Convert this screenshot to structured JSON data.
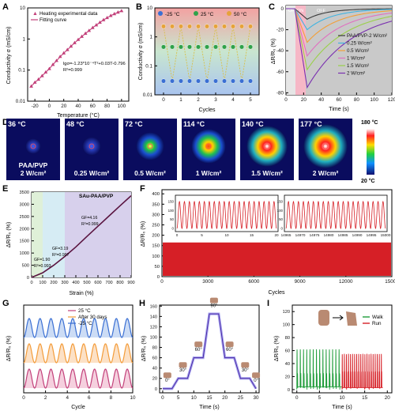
{
  "panels": {
    "A": {
      "label": "A",
      "ylabel": "Conductivity σ (mS/cm)",
      "xlabel": "Temperature (°C)",
      "legend": [
        "Heating experimental data",
        "Fitting curve"
      ],
      "equation": "lgσ=-1.23*10⁻⁴T²+0.03T-0.796",
      "r2": "R²=0.999",
      "xticks": [
        "-20",
        "0",
        "20",
        "40",
        "60",
        "80",
        "100"
      ],
      "yticks": [
        "10",
        "1",
        "0.1",
        "0.01"
      ]
    },
    "B": {
      "label": "B",
      "ylabel": "Conductivity σ (mS/cm)",
      "xlabel": "Cycles",
      "temps": [
        "-25 °C",
        "25 °C",
        "50 °C"
      ],
      "xticks": [
        "0",
        "1",
        "2",
        "3",
        "4",
        "5"
      ],
      "yticks": [
        "10",
        "1",
        "0.1",
        "0.01"
      ]
    },
    "C": {
      "label": "C",
      "ylabel": "ΔR/R₀ (%)",
      "xlabel": "Time (s)",
      "phases": [
        "OFF",
        "ON",
        "OFF"
      ],
      "legend": [
        "PAA/PVP-2 W/cm²",
        "0.25 W/cm²",
        "0.5 W/cm²",
        "1 W/cm²",
        "1.5 W/cm²",
        "2 W/cm²"
      ],
      "xticks": [
        "0",
        "20",
        "40",
        "60",
        "80",
        "100",
        "120"
      ],
      "yticks": [
        "0",
        "-20",
        "-40",
        "-60",
        "-80"
      ]
    },
    "D": {
      "label": "D",
      "temps": [
        "36 °C",
        "48 °C",
        "72 °C",
        "114 °C",
        "140 °C",
        "177 °C"
      ],
      "powers": [
        "PAA/PVP\n2 W/cm²",
        "0.25 W/cm²",
        "0.5 W/cm²",
        "1 W/cm²",
        "1.5 W/cm²",
        "2 W/cm²"
      ],
      "scale_max": "180 °C",
      "scale_min": "20 °C"
    },
    "E": {
      "label": "E",
      "ylabel": "ΔR/R₀ (%)",
      "xlabel": "Strain (%)",
      "title": "SAu-PAA/PVP",
      "gf": [
        {
          "gf": "GF=1.90",
          "r2": "R²=0.993"
        },
        {
          "gf": "GF=3.19",
          "r2": "R²=0.997"
        },
        {
          "gf": "GF=4.16",
          "r2": "R²=0.999"
        }
      ],
      "xticks": [
        "0",
        "100",
        "200",
        "300",
        "400",
        "500",
        "600",
        "700",
        "800",
        "900"
      ],
      "yticks": [
        "0",
        "500",
        "1000",
        "1500",
        "2000",
        "2500",
        "3000",
        "3500"
      ]
    },
    "F": {
      "label": "F",
      "ylabel": "ΔR/R₀ (%)",
      "xlabel": "Cycles",
      "xticks": [
        "0",
        "3000",
        "6000",
        "9000",
        "12000",
        "15000"
      ],
      "yticks": [
        "0",
        "50",
        "100",
        "150",
        "200",
        "250",
        "300",
        "350",
        "400"
      ],
      "inset1_xticks": [
        "0",
        "5",
        "10",
        "15",
        "20"
      ],
      "inset2_xticks": [
        "14965",
        "14970",
        "14975",
        "14980",
        "14985",
        "14990",
        "14995",
        "15000"
      ],
      "inset_yticks": [
        "0",
        "50",
        "100",
        "150"
      ]
    },
    "G": {
      "label": "G",
      "ylabel": "ΔR/R₀ (%)",
      "xlabel": "Cycle",
      "legend": [
        "25 °C",
        "After 30 days",
        "-25 °C"
      ],
      "xticks": [
        "0",
        "2",
        "4",
        "6",
        "8",
        "10"
      ]
    },
    "H": {
      "label": "H",
      "ylabel": "ΔR/R₀ (%)",
      "xlabel": "Time (s)",
      "angles": [
        "0°",
        "30°",
        "60°",
        "90°",
        "60°",
        "30°",
        "0°"
      ],
      "xticks": [
        "0",
        "5",
        "10",
        "15",
        "20",
        "25",
        "30"
      ],
      "yticks": [
        "0",
        "20",
        "40",
        "60",
        "80",
        "100",
        "120",
        "140",
        "160"
      ]
    },
    "I": {
      "label": "I",
      "ylabel": "ΔR/R₀ (%)",
      "xlabel": "Time (s)",
      "legend": [
        "Walk",
        "Run"
      ],
      "xticks": [
        "0",
        "5",
        "10",
        "15",
        "20"
      ],
      "yticks": [
        "0",
        "20",
        "40",
        "60",
        "80",
        "100",
        "120"
      ]
    }
  },
  "chart_data": [
    {
      "type": "scatter",
      "panel": "A",
      "x": [
        -25,
        -20,
        -15,
        -10,
        -5,
        0,
        5,
        10,
        15,
        20,
        25,
        30,
        35,
        40,
        45,
        50,
        55,
        60,
        65,
        70,
        75,
        80,
        85,
        90,
        95,
        100
      ],
      "y": [
        0.03,
        0.04,
        0.05,
        0.065,
        0.085,
        0.11,
        0.15,
        0.2,
        0.27,
        0.35,
        0.45,
        0.58,
        0.75,
        0.95,
        1.2,
        1.5,
        1.85,
        2.3,
        2.8,
        3.4,
        4.1,
        4.8,
        5.6,
        6.4,
        7.2,
        8.0
      ],
      "ylim": [
        0.01,
        10
      ],
      "xlim": [
        -30,
        110
      ],
      "yscale": "log"
    },
    {
      "type": "scatter",
      "panel": "B",
      "x": [
        0,
        0.5,
        1,
        1.5,
        2,
        2.5,
        3,
        3.5,
        4,
        4.5,
        5
      ],
      "series": [
        {
          "name": "-25 °C",
          "values": [
            0.03,
            0.03,
            0.03,
            0.03,
            0.03,
            0.03,
            0.03,
            0.03,
            0.03,
            0.03,
            0.03
          ]
        },
        {
          "name": "25 °C",
          "values": [
            0.45,
            0.45,
            0.45,
            0.45,
            0.45,
            0.45,
            0.45,
            0.45,
            0.45,
            0.45,
            0.45
          ]
        },
        {
          "name": "50 °C",
          "values": [
            2.3,
            2.3,
            2.3,
            2.3,
            2.3,
            2.3,
            2.3,
            2.3,
            2.3,
            2.3,
            2.3
          ]
        }
      ],
      "ylim": [
        0.01,
        10
      ],
      "yscale": "log"
    },
    {
      "type": "line",
      "panel": "C",
      "x": [
        0,
        10,
        24,
        40,
        60,
        80,
        100,
        120
      ],
      "series": [
        {
          "name": "PAA/PVP-2 W/cm²",
          "values": [
            0,
            0,
            -10,
            -3,
            -1,
            0,
            0,
            0
          ]
        },
        {
          "name": "0.25 W/cm²",
          "values": [
            0,
            0,
            -20,
            -12,
            -6,
            -3,
            -1,
            0
          ]
        },
        {
          "name": "0.5 W/cm²",
          "values": [
            0,
            0,
            -32,
            -20,
            -11,
            -5,
            -2,
            0
          ]
        },
        {
          "name": "1 W/cm²",
          "values": [
            0,
            0,
            -45,
            -30,
            -17,
            -8,
            -3,
            0
          ]
        },
        {
          "name": "1.5 W/cm²",
          "values": [
            0,
            0,
            -58,
            -40,
            -24,
            -12,
            -5,
            0
          ]
        },
        {
          "name": "2 W/cm²",
          "values": [
            0,
            0,
            -75,
            -55,
            -34,
            -18,
            -8,
            -2
          ]
        }
      ],
      "ylim": [
        -80,
        0
      ],
      "xlim": [
        0,
        120
      ]
    },
    {
      "type": "line",
      "panel": "E",
      "x": [
        0,
        100,
        200,
        300,
        400,
        500,
        600,
        700,
        800,
        900
      ],
      "values": [
        0,
        190,
        500,
        860,
        1250,
        1680,
        2100,
        2520,
        2940,
        3350
      ],
      "ylim": [
        0,
        3500
      ],
      "xlim": [
        0,
        900
      ]
    },
    {
      "type": "line",
      "panel": "F",
      "x": [
        0,
        15000
      ],
      "values": [
        0,
        160
      ],
      "ylim": [
        0,
        400
      ],
      "xlim": [
        0,
        15000
      ],
      "inset_peak": 150
    },
    {
      "type": "line",
      "panel": "G",
      "x": [
        0,
        10
      ],
      "series": [
        {
          "name": "25 °C",
          "values": [
            0,
            1
          ]
        },
        {
          "name": "After 30 days",
          "values": [
            0,
            1
          ]
        },
        {
          "name": "-25 °C",
          "values": [
            0,
            1
          ]
        }
      ],
      "xlim": [
        0,
        10
      ]
    },
    {
      "type": "line",
      "panel": "H",
      "x": [
        0,
        3,
        5,
        8,
        10,
        13,
        15,
        18,
        20,
        23,
        25,
        28,
        30
      ],
      "values": [
        0,
        0,
        20,
        20,
        60,
        60,
        145,
        145,
        60,
        60,
        20,
        20,
        0
      ],
      "ylim": [
        0,
        160
      ],
      "xlim": [
        0,
        30
      ]
    },
    {
      "type": "line",
      "panel": "I",
      "x": [
        0,
        10,
        20
      ],
      "series": [
        {
          "name": "Walk",
          "values": [
            0,
            60,
            0
          ]
        },
        {
          "name": "Run",
          "values": [
            0,
            55,
            0
          ]
        }
      ],
      "ylim": [
        0,
        130
      ],
      "xlim": [
        0,
        20
      ]
    }
  ],
  "colors": {
    "pink": "#c2407a",
    "red": "#d61f26",
    "orange": "#f39c3a",
    "blue": "#3a6fd3",
    "purple": "#4b2aa6",
    "green": "#1f9c3a"
  }
}
